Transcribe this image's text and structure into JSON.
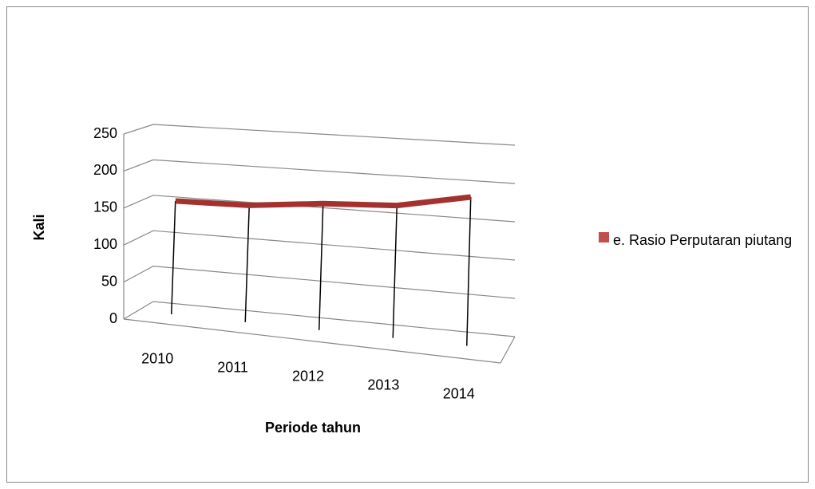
{
  "chart_data": {
    "type": "line3d",
    "x_label": "Periode tahun",
    "y_label": "Kali",
    "categories": [
      "2010",
      "2011",
      "2012",
      "2013",
      "2014"
    ],
    "series": [
      {
        "name": "e. Rasio Perputaran piutang",
        "color": "#a3322f",
        "values": [
          155,
          157,
          167,
          172,
          190
        ]
      }
    ],
    "ylim": [
      0,
      250
    ],
    "yticks": [
      0,
      50,
      100,
      150,
      200,
      250
    ],
    "grid": true,
    "legend": "right"
  }
}
